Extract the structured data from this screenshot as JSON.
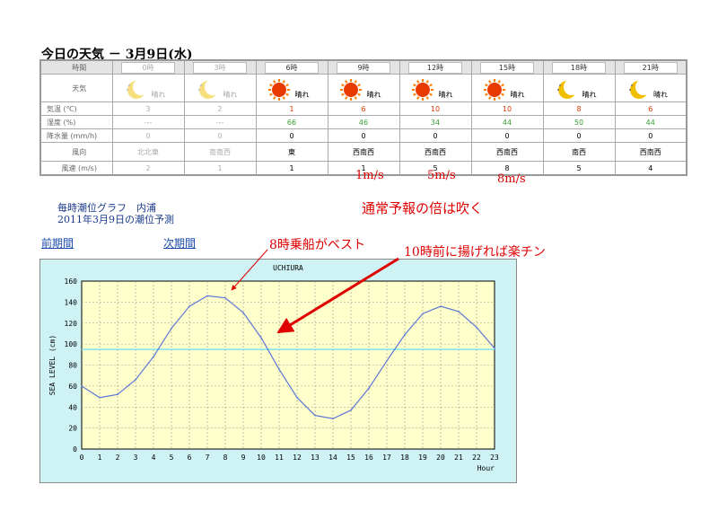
{
  "weather": {
    "title": "今日の天気 － 3月9日(水)",
    "row_labels": {
      "time": "時間",
      "weather": "天気",
      "temp": "気温 (℃)",
      "humidity": "湿度 (%)",
      "precip": "降水量 (mm/h)",
      "wind_dir": "風向",
      "wind_speed": "風速 (m/s)"
    },
    "columns": [
      {
        "time": "0時",
        "icon": "moon-icon",
        "weather": "晴れ",
        "temp": "3",
        "humidity": "---",
        "precip": "0",
        "wind_dir": "北北東",
        "wind_speed": "2",
        "past": true
      },
      {
        "time": "3時",
        "icon": "moon-icon",
        "weather": "晴れ",
        "temp": "2",
        "humidity": "---",
        "precip": "0",
        "wind_dir": "南南西",
        "wind_speed": "1",
        "past": true
      },
      {
        "time": "6時",
        "icon": "sun-icon",
        "weather": "晴れ",
        "temp": "1",
        "humidity": "66",
        "precip": "0",
        "wind_dir": "東",
        "wind_speed": "1",
        "past": false
      },
      {
        "time": "9時",
        "icon": "sun-icon",
        "weather": "晴れ",
        "temp": "6",
        "humidity": "46",
        "precip": "0",
        "wind_dir": "西南西",
        "wind_speed": "1",
        "past": false
      },
      {
        "time": "12時",
        "icon": "sun-icon",
        "weather": "晴れ",
        "temp": "10",
        "humidity": "34",
        "precip": "0",
        "wind_dir": "西南西",
        "wind_speed": "5",
        "past": false
      },
      {
        "time": "15時",
        "icon": "sun-icon",
        "weather": "晴れ",
        "temp": "10",
        "humidity": "44",
        "precip": "0",
        "wind_dir": "西南西",
        "wind_speed": "8",
        "past": false
      },
      {
        "time": "18時",
        "icon": "moon-icon",
        "weather": "晴れ",
        "temp": "8",
        "humidity": "50",
        "precip": "0",
        "wind_dir": "南西",
        "wind_speed": "5",
        "past": false
      },
      {
        "time": "21時",
        "icon": "moon-icon",
        "weather": "晴れ",
        "temp": "6",
        "humidity": "44",
        "precip": "0",
        "wind_dir": "西南西",
        "wind_speed": "4",
        "past": false
      }
    ]
  },
  "annotations": {
    "wind_9": "1m/s",
    "wind_12": "5m/s",
    "wind_15": "8m/s",
    "double_forecast": "通常予報の倍は吹く",
    "best_8": "8時乗船がベスト",
    "before_10": "10時前に揚げれば楽チン"
  },
  "tide": {
    "heading": "毎時潮位グラフ　内浦",
    "subheading": "2011年3月9日の潮位予測",
    "prev_link": "前期間",
    "next_link": "次期間"
  },
  "colors": {
    "plot_bg": "#ffffcc",
    "frame_bg": "#cff2f5",
    "line": "#5a78d8",
    "ref_line": "#7fe0f0",
    "note": "#e00000"
  },
  "chart_data": {
    "type": "line",
    "title": "UCHIURA",
    "xlabel": "Hour",
    "ylabel": "SEA LEVEL (cm)",
    "xlim": [
      0,
      23
    ],
    "ylim": [
      0,
      160
    ],
    "x": [
      0,
      1,
      2,
      3,
      4,
      5,
      6,
      7,
      8,
      9,
      10,
      11,
      12,
      13,
      14,
      15,
      16,
      17,
      18,
      19,
      20,
      21,
      22,
      23
    ],
    "series": [
      {
        "values": [
          60,
          49,
          52,
          66,
          88,
          115,
          136,
          146,
          144,
          130,
          106,
          76,
          49,
          32,
          29,
          37,
          58,
          84,
          109,
          129,
          136,
          131,
          116,
          96
        ]
      }
    ],
    "reference_line": 95,
    "x_ticks": [
      0,
      1,
      2,
      3,
      4,
      5,
      6,
      7,
      8,
      9,
      10,
      11,
      12,
      13,
      14,
      15,
      16,
      17,
      18,
      19,
      20,
      21,
      22,
      23
    ],
    "y_ticks": [
      0,
      20,
      40,
      60,
      80,
      100,
      120,
      140,
      160
    ],
    "grid": true
  }
}
